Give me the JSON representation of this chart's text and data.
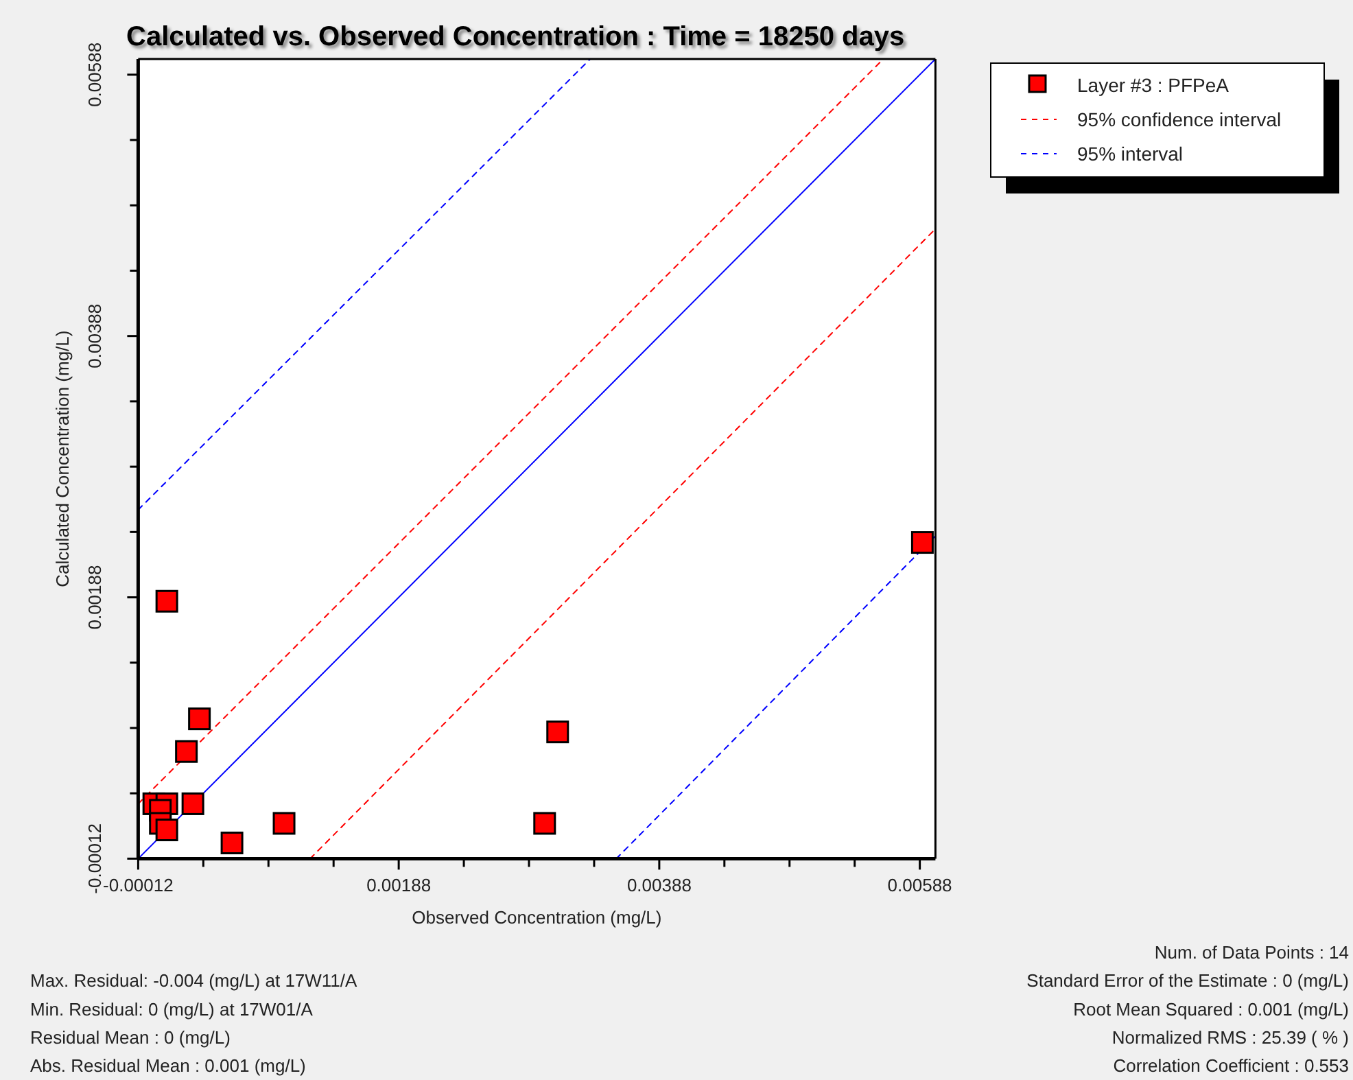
{
  "chart_data": {
    "type": "scatter",
    "title": "Calculated vs. Observed Concentration : Time = 18250 days",
    "xlabel": "Observed Concentration (mg/L)",
    "ylabel": "Calculated Concentration (mg/L)",
    "xlim": [
      -0.00012,
      0.006
    ],
    "ylim": [
      -0.00012,
      0.006
    ],
    "xticks": [
      -0.00012,
      {
        "value": 0.00038,
        "label": null
      },
      {
        "value": 0.00088,
        "label": null
      },
      {
        "value": 0.00138,
        "label": null
      },
      0.00188,
      {
        "value": 0.00238,
        "label": null
      },
      {
        "value": 0.00288,
        "label": null
      },
      {
        "value": 0.00338,
        "label": null
      },
      0.00388,
      {
        "value": 0.00438,
        "label": null
      },
      {
        "value": 0.00488,
        "label": null
      },
      {
        "value": 0.00538,
        "label": null
      },
      0.00588
    ],
    "yticks": [
      -0.00012,
      {
        "value": 0.00038,
        "label": null
      },
      {
        "value": 0.00088,
        "label": null
      },
      {
        "value": 0.00138,
        "label": null
      },
      0.00188,
      {
        "value": 0.00238,
        "label": null
      },
      {
        "value": 0.00288,
        "label": null
      },
      {
        "value": 0.00338,
        "label": null
      },
      0.00388,
      {
        "value": 0.00438,
        "label": null
      },
      {
        "value": 0.00488,
        "label": null
      },
      {
        "value": 0.00538,
        "label": null
      },
      0.00588
    ],
    "legend": "top right",
    "series": [
      {
        "name": "Layer #3 : PFPeA",
        "color": "#ff0000",
        "marker": "square",
        "x": [
          0.0001,
          0.00035,
          0.00025,
          0.0031,
          0.0003,
          0,
          0.0001,
          5e-05,
          5e-05,
          0.0001,
          0.0006,
          0.001,
          0.003,
          0.0059
        ],
        "values": [
          0.00185,
          0.00095,
          0.0007,
          0.00085,
          0.0003,
          0.0003,
          0.0003,
          0.00025,
          0.00015,
          0.0001,
          0,
          0.00015,
          0.00015,
          0.0023
        ]
      },
      {
        "type": "line",
        "color": "#0000ff",
        "line_style": "solid",
        "x": [
          -0.00012,
          0.006
        ],
        "values": [
          -0.00012,
          0.006
        ]
      },
      {
        "name": "95% confidence interval",
        "type": "line",
        "color": "#ff0000",
        "line_style": "dashed",
        "x": [
          -0.00012,
          0.0056
        ],
        "values": [
          0.0003,
          0.006
        ]
      },
      {
        "type": "line",
        "color": "#ff0000",
        "line_style": "dashed",
        "x": [
          0.0012,
          0.006
        ],
        "values": [
          -0.00012,
          0.0047
        ]
      },
      {
        "name": "95% interval",
        "type": "line",
        "color": "#0000ff",
        "line_style": "dashed",
        "x": [
          -0.00012,
          0.00335
        ],
        "values": [
          0.00255,
          0.006
        ]
      },
      {
        "type": "line",
        "color": "#0000ff",
        "line_style": "dashed",
        "x": [
          0.00355,
          0.006
        ],
        "values": [
          -0.00012,
          0.00235
        ]
      }
    ],
    "annotations": [
      "Max. Residual: -0.004 (mg/L) at 17W11/A",
      "Min. Residual: 0 (mg/L) at 17W01/A",
      "Residual Mean : 0 (mg/L)",
      "Abs. Residual Mean : 0.001 (mg/L)",
      "Num. of Data Points : 14",
      "Standard Error of the Estimate : 0 (mg/L)",
      "Root Mean Squared : 0.001 (mg/L)",
      "Normalized RMS : 25.39 ( % )",
      "Correlation Coefficient : 0.553"
    ]
  }
}
